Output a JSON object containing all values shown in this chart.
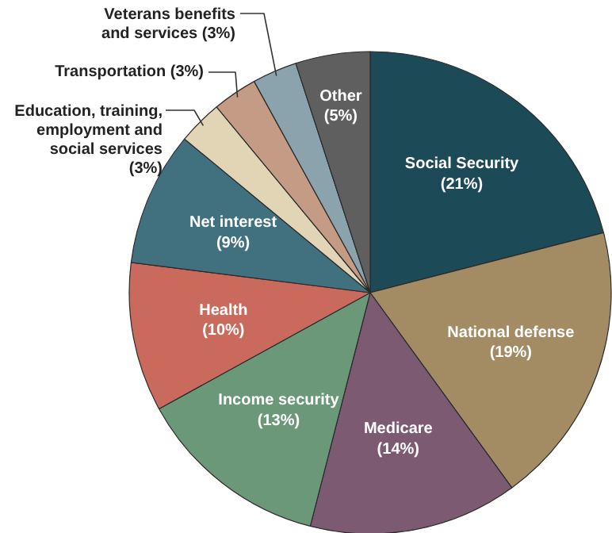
{
  "chart_data": {
    "type": "pie",
    "categories": [
      "Social Security",
      "National defense",
      "Medicare",
      "Income security",
      "Health",
      "Net interest",
      "Education, training,\nemployment and\nsocial services",
      "Transportation",
      "Veterans benefits\nand services",
      "Other"
    ],
    "values": [
      21,
      19,
      14,
      13,
      10,
      9,
      3,
      3,
      3,
      5
    ],
    "colors": [
      "#1d4a57",
      "#a38b63",
      "#7c5b72",
      "#6a9878",
      "#c96a5c",
      "#41707f",
      "#e2d5b5",
      "#c49b85",
      "#8aa3ad",
      "#5f5f5f"
    ],
    "value_labels": [
      "(21%)",
      "(19%)",
      "(14%)",
      "(13%)",
      "(10%)",
      "(9%)",
      "(3%)",
      "(3%)",
      "(3%)",
      "(5%)"
    ]
  }
}
